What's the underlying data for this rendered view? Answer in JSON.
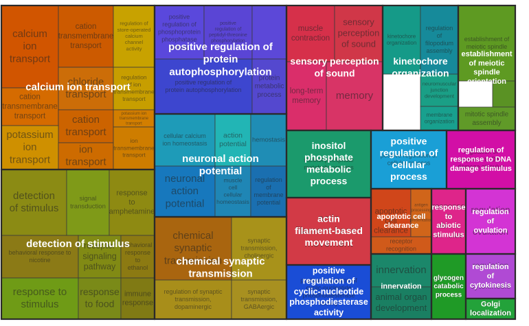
{
  "chart_data": {
    "type": "treemap",
    "groups": [
      {
        "name": "calcium ion transport",
        "label": "calcium ion transport",
        "color": "#d35400",
        "cells": [
          {
            "label": "calcium ion transport",
            "color": "#d15500"
          },
          {
            "label": "cation transmembrane transport",
            "color": "#cc5a00"
          },
          {
            "label": "regulation of store-operated calcium channel activity",
            "color": "#c8a200"
          },
          {
            "label": "cation transmembrane transport",
            "color": "#d56b00"
          },
          {
            "label": "chloride transport",
            "color": "#cc6d08"
          },
          {
            "label": "regulation of ion transmembrane transport",
            "color": "#c79e00"
          },
          {
            "label": "cation transport",
            "color": "#cc6300"
          },
          {
            "label": "potassium ion transmembrane transport",
            "color": "#d27e00"
          },
          {
            "label": "potassium ion transport",
            "color": "#cf9000"
          },
          {
            "label": "ion transport",
            "color": "#cd6b00"
          },
          {
            "label": "ion transmembrane transport",
            "color": "#ce7d00"
          }
        ]
      },
      {
        "name": "detection of stimulus",
        "label": "detection of stimulus",
        "color": "#8a8a12",
        "cells": [
          {
            "label": "detection of stimulus",
            "color": "#8b8b14"
          },
          {
            "label": "signal transduction",
            "color": "#7f9a18"
          },
          {
            "label": "response to amphetamine",
            "color": "#8e8a12"
          },
          {
            "label": "behavioral response to nicotine",
            "color": "#8b7a16"
          },
          {
            "label": "receptor signaling pathway",
            "color": "#818a14"
          },
          {
            "label": "behavioral response to ethanol",
            "color": "#8c7a12"
          },
          {
            "label": "response to stimulus",
            "color": "#6f9b16"
          },
          {
            "label": "response to food",
            "color": "#7a8a18"
          },
          {
            "label": "immune response",
            "color": "#807a14"
          }
        ]
      },
      {
        "name": "positive regulation of protein autophosphorylation",
        "label": "positive regulation of protein autophosphorylation",
        "color": "#5a46d8",
        "cells": [
          {
            "label": "positive regulation of phosphoprotein phosphatase activity",
            "color": "#5a48dc"
          },
          {
            "label": "positive regulation of peptidyl-threonine phosphorylation",
            "color": "#5a45d5"
          },
          {
            "label": "",
            "color": "#5c48d8"
          },
          {
            "label": "positive regulation of protein autophosphorylation",
            "color": "#3d46cf"
          },
          {
            "label": "protein metabolic process",
            "color": "#5448cf"
          }
        ]
      },
      {
        "name": "neuronal action potential",
        "label": "neuronal action potential",
        "color": "#1c9ab5",
        "cells": [
          {
            "label": "cellular calcium ion homeostasis",
            "color": "#1e9bb8"
          },
          {
            "label": "action potential",
            "color": "#22b5b5"
          },
          {
            "label": "hemostasis",
            "color": "#1f8db5"
          },
          {
            "label": "neuronal action potential",
            "color": "#1778bd"
          },
          {
            "label": "muscle cell cellular homeostasis",
            "color": "#1f86b5"
          },
          {
            "label": "regulation of membrane potential",
            "color": "#1a6fb0"
          }
        ]
      },
      {
        "name": "chemical synaptic transmission",
        "label": "chemical synaptic transmission",
        "color": "#a86f10",
        "cells": [
          {
            "label": "chemical synaptic transmission",
            "color": "#a9650f"
          },
          {
            "label": "synaptic transmission, cholinergic",
            "color": "#a8921a"
          },
          {
            "label": "regulation of synaptic transmission, dopaminergic",
            "color": "#a88e1a"
          },
          {
            "label": "synaptic transmission, GABAergic",
            "color": "#a89020"
          }
        ]
      },
      {
        "name": "sensory perception of sound",
        "label": "sensory perception of sound",
        "color": "#d9306a",
        "cells": [
          {
            "label": "muscle contraction",
            "color": "#d6304a"
          },
          {
            "label": "sensory perception of sound",
            "color": "#d03748"
          },
          {
            "label": "long-term memory",
            "color": "#da2e6a"
          },
          {
            "label": "memory",
            "color": "#d83466"
          }
        ]
      },
      {
        "name": "kinetochore organization",
        "label": "kinetochore organization",
        "color": "#14a08a",
        "cells": [
          {
            "label": "kinetochore organization",
            "color": "#159a88"
          },
          {
            "label": "regulation of filopodium assembly",
            "color": "#168a9a"
          },
          {
            "label": "neuromuscular junction development",
            "color": "#1a9f86"
          },
          {
            "label": "membrane organization",
            "color": "#18a08e"
          }
        ]
      },
      {
        "name": "establishment of meiotic spindle orientation",
        "label": "establishment of meiotic spindle orientation",
        "color": "#5f9a22",
        "cells": [
          {
            "label": "establishment of meiotic spindle",
            "color": "#5e9a22"
          },
          {
            "label": "",
            "color": "#5a9224"
          },
          {
            "label": "mitotic spindle assembly",
            "color": "#609a28"
          }
        ]
      },
      {
        "name": "inositol phosphate metabolic process",
        "label": "inositol phosphate metabolic process",
        "color": "#1a9a6a",
        "cells": [
          {
            "label": "inositol phosphate metabolic process",
            "color": "#1b9a6c"
          }
        ]
      },
      {
        "name": "positive regulation of cellular process",
        "label": "positive regulation of cellular process",
        "color": "#1aa0d8",
        "cells": [
          {
            "label": "positive regulation of cellular process",
            "color": "#1a9fd6"
          }
        ]
      },
      {
        "name": "regulation of response to DNA damage stimulus",
        "label": "regulation of response to DNA damage stimulus",
        "color": "#d40fa8",
        "cells": [
          {
            "label": "regulation of response to DNA damage stimulus",
            "color": "#d20fa6"
          }
        ]
      },
      {
        "name": "actin filament-based movement",
        "label": "actin filament-based movement",
        "color": "#d43a48",
        "cells": [
          {
            "label": "actin filament-based movement",
            "color": "#d23a46"
          }
        ]
      },
      {
        "name": "apoptotic cell clearance",
        "label": "apoptotic cell clearance",
        "color": "#d4451a",
        "cells": [
          {
            "label": "apoptotic cell clearance",
            "color": "#d0461a"
          },
          {
            "label": "antigen processing and presentation",
            "color": "#d0651a"
          },
          {
            "label": "receptor recognition",
            "color": "#d05a1a"
          }
        ]
      },
      {
        "name": "response to abiotic stimulus",
        "label": "response to abiotic stimulus",
        "color": "#e0248a",
        "cells": [
          {
            "label": "response to abiotic stimulus",
            "color": "#de258a"
          }
        ]
      },
      {
        "name": "regulation of ovulation",
        "label": "regulation of ovulation",
        "color": "#d632d6",
        "cells": [
          {
            "label": "regulation of ovulation",
            "color": "#d334d4"
          }
        ]
      },
      {
        "name": "positive regulation of cyclic-nucleotide phosphodiesterase activity",
        "label": "positive regulation of cyclic-nucleotide phosphodiesterase activity",
        "color": "#1a4fd8",
        "cells": [
          {
            "label": "positive regulation of cyclic-nucleotide phosphodiesterase activity",
            "color": "#1a4dd6"
          }
        ]
      },
      {
        "name": "innervation",
        "label": "innervation",
        "color": "#1a8a6a",
        "cells": [
          {
            "label": "innervation",
            "color": "#1b876a"
          },
          {
            "label": "animal organ development",
            "color": "#1a7f62"
          }
        ]
      },
      {
        "name": "glycogen catabolic process",
        "label": "glycogen catabolic process",
        "color": "#1f9a26",
        "cells": [
          {
            "label": "glycogen catabolic process",
            "color": "#1f9a26"
          }
        ]
      },
      {
        "name": "regulation of cytokinesis",
        "label": "regulation of cytokinesis",
        "color": "#b34ad6",
        "cells": [
          {
            "label": "regulation of cytokinesis",
            "color": "#b04ad4"
          }
        ]
      },
      {
        "name": "Golgi localization",
        "label": "Golgi localization",
        "color": "#23a23a",
        "cells": [
          {
            "label": "Golgi localization",
            "color": "#23a23a"
          }
        ]
      }
    ]
  }
}
